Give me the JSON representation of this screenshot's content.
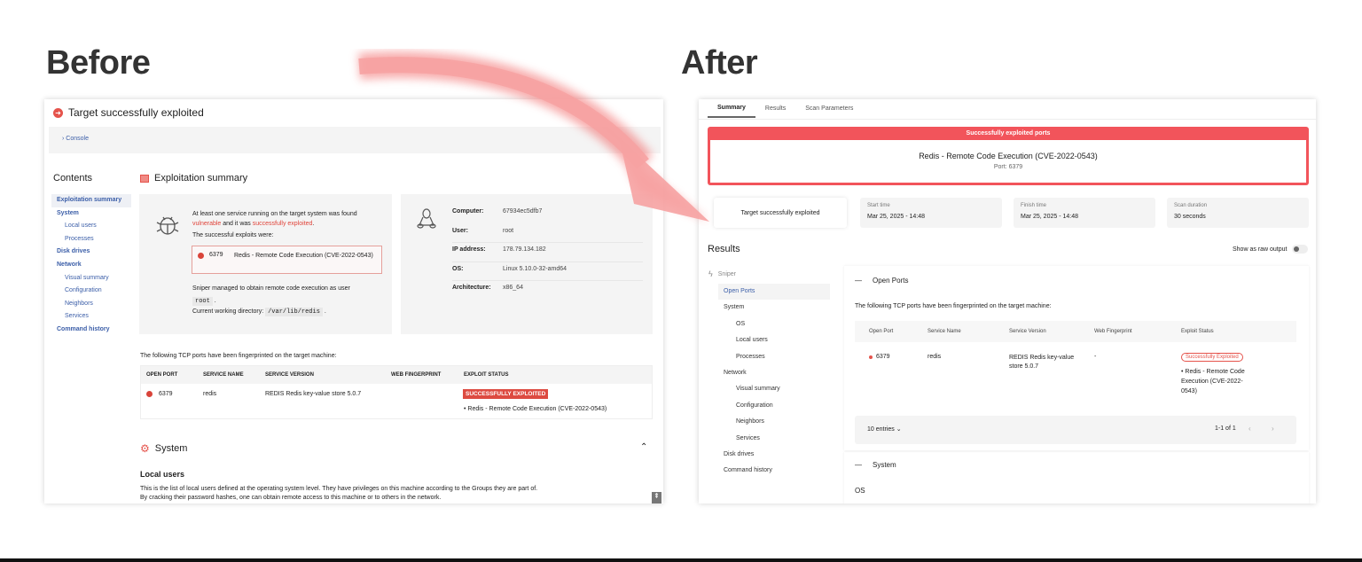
{
  "labels": {
    "before": "Before",
    "after": "After"
  },
  "colors": {
    "accent_red": "#f2545b",
    "link_blue": "#3b5ea8"
  },
  "before": {
    "title": "Target successfully exploited",
    "console": "Console",
    "contents_title": "Contents",
    "nav": [
      {
        "label": "Exploitation summary",
        "level": 1,
        "active": true
      },
      {
        "label": "System",
        "level": 1
      },
      {
        "label": "Local users",
        "level": 2
      },
      {
        "label": "Processes",
        "level": 2
      },
      {
        "label": "Disk drives",
        "level": 1
      },
      {
        "label": "Network",
        "level": 1
      },
      {
        "label": "Visual summary",
        "level": 2
      },
      {
        "label": "Configuration",
        "level": 2
      },
      {
        "label": "Neighbors",
        "level": 2
      },
      {
        "label": "Services",
        "level": 2
      },
      {
        "label": "Command history",
        "level": 1
      }
    ],
    "summary_title": "Exploitation summary",
    "intro_a": "At least one service running on the target system was found",
    "intro_vuln": "vulnerable",
    "intro_mid": " and it was ",
    "intro_exploited": "successfully exploited",
    "intro_end": ".",
    "exploits_label": "The successful exploits were:",
    "exploit_port": "6379",
    "exploit_name": "Redis - Remote Code Execution (CVE-2022-0543)",
    "rce_text": "Sniper managed to obtain remote code execution as user",
    "rce_user": "root",
    "cwd_label": "Current working directory:",
    "cwd": "/var/lib/redis",
    "sysinfo": [
      {
        "label": "Computer:",
        "value": "67934ec5dfb7"
      },
      {
        "label": "User:",
        "value": "root"
      },
      {
        "label": "IP address:",
        "value": "178.79.134.182"
      },
      {
        "label": "OS:",
        "value": "Linux 5.10.0-32-amd64"
      },
      {
        "label": "Architecture:",
        "value": "x86_64"
      }
    ],
    "ports_intro": "The following TCP ports have been fingerprinted on the target machine:",
    "table_headers": [
      "OPEN PORT",
      "SERVICE NAME",
      "SERVICE VERSION",
      "WEB FINGERPRINT",
      "EXPLOIT STATUS"
    ],
    "table_row": {
      "port": "6379",
      "service": "redis",
      "version": "REDIS Redis key-value store 5.0.7",
      "fingerprint": "",
      "status": "SUCCESSFULLY EXPLOITED",
      "exploit": "Redis - Remote Code Execution (CVE-2022-0543)"
    },
    "system_title": "System",
    "local_users_title": "Local users",
    "local_users_p1": "This is the list of local users defined at the operating system level. They have privileges on this machine according to the Groups they are part of.",
    "local_users_p2": "By cracking their password hashes, one can obtain remote access to this machine or to others in the network."
  },
  "after": {
    "tabs": [
      {
        "label": "Summary",
        "active": true
      },
      {
        "label": "Results"
      },
      {
        "label": "Scan Parameters"
      }
    ],
    "banner_title": "Successfully exploited ports",
    "banner_exploit": "Redis - Remote Code Execution (CVE-2022-0543)",
    "banner_port": "Port: 6379",
    "status_card": "Target successfully exploited",
    "stats": [
      {
        "label": "Start time",
        "value": "Mar 25, 2025 - 14:48"
      },
      {
        "label": "Finish time",
        "value": "Mar 25, 2025 - 14:48"
      },
      {
        "label": "Scan duration",
        "value": "30 seconds"
      }
    ],
    "results_title": "Results",
    "raw_toggle_label": "Show as raw output",
    "raw_toggle_on": false,
    "tool": "Sniper",
    "nav": [
      {
        "label": "Open Ports",
        "level": 1,
        "active": true
      },
      {
        "label": "System",
        "level": 1
      },
      {
        "label": "OS",
        "level": 2
      },
      {
        "label": "Local users",
        "level": 2
      },
      {
        "label": "Processes",
        "level": 2
      },
      {
        "label": "Network",
        "level": 1
      },
      {
        "label": "Visual summary",
        "level": 2
      },
      {
        "label": "Configuration",
        "level": 2
      },
      {
        "label": "Neighbors",
        "level": 2
      },
      {
        "label": "Services",
        "level": 2
      },
      {
        "label": "Disk drives",
        "level": 1
      },
      {
        "label": "Command history",
        "level": 1
      }
    ],
    "open_ports_title": "Open Ports",
    "ports_intro": "The following TCP ports have been fingerprinted on the target machine:",
    "table_headers": [
      "Open Port",
      "Service Name",
      "Service Version",
      "Web Fingerprint",
      "Exploit Status"
    ],
    "table_row": {
      "port": "6379",
      "service": "redis",
      "version": "REDIS Redis key-value store 5.0.7",
      "fingerprint": "-",
      "status": "Successfully Exploited",
      "exploit": "Redis - Remote Code Execution (CVE-2022-0543)"
    },
    "entries": "10 entries",
    "pagination": "1-1 of 1",
    "system_title": "System",
    "os_title": "OS"
  }
}
